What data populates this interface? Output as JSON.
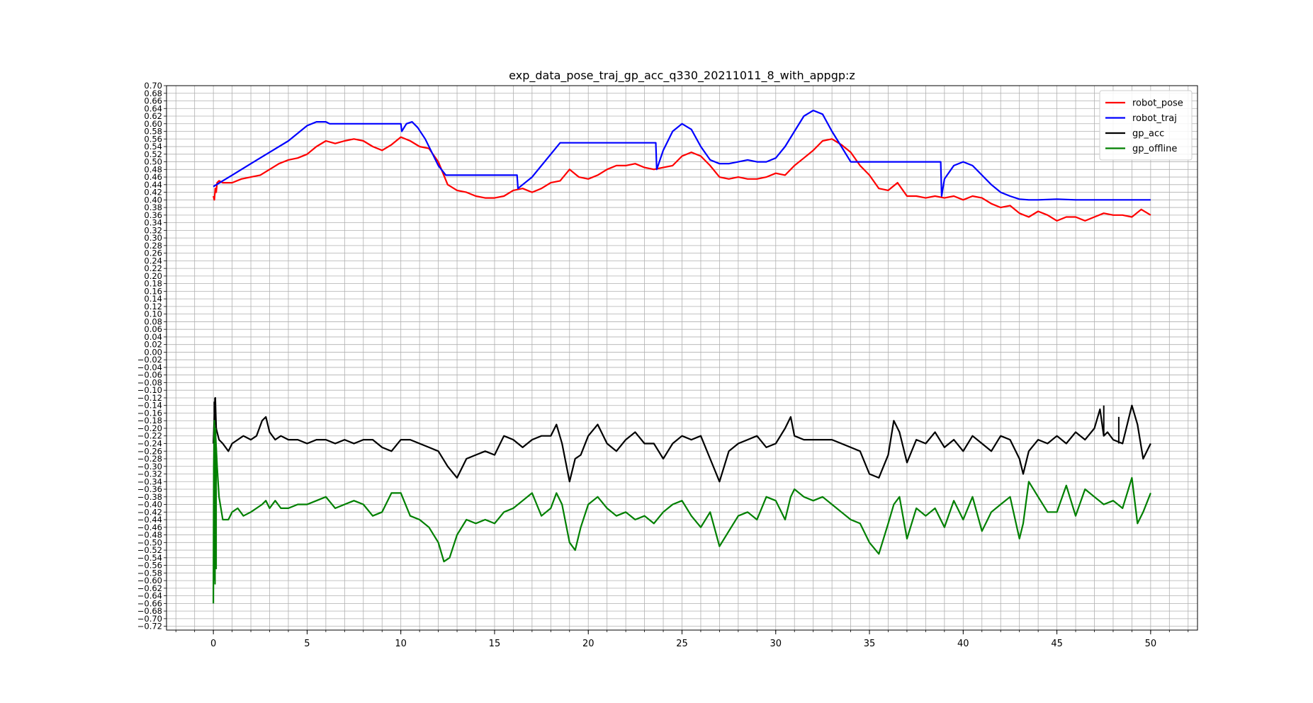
{
  "chart_data": {
    "type": "line",
    "title": "exp_data_pose_traj_gp_acc_q330_20211011_8_with_appgp:z",
    "xlabel": "",
    "ylabel": "",
    "xlim": [
      -2.5,
      52.5
    ],
    "ylim": [
      -0.73,
      0.7
    ],
    "x_ticks": [
      0,
      5,
      10,
      15,
      20,
      25,
      30,
      35,
      40,
      45,
      50
    ],
    "x_tick_labels": [
      "0",
      "5",
      "10",
      "15",
      "20",
      "25",
      "30",
      "35",
      "40",
      "45",
      "50"
    ],
    "x_minor_step": 1,
    "y_tick_step": 0.02,
    "y_tick_min": -0.72,
    "y_tick_max": 0.7,
    "grid": true,
    "legend_position": "top-right",
    "series": [
      {
        "name": "robot_pose",
        "color": "#ff0000",
        "x": [
          0.0,
          0.05,
          0.1,
          0.15,
          0.2,
          0.3,
          0.5,
          1.0,
          1.5,
          2.0,
          2.5,
          3.0,
          3.5,
          4.0,
          4.5,
          5.0,
          5.5,
          6.0,
          6.5,
          7.0,
          7.5,
          8.0,
          8.5,
          9.0,
          9.5,
          10.0,
          10.5,
          11.0,
          11.5,
          12.0,
          12.5,
          13.0,
          13.5,
          14.0,
          14.5,
          15.0,
          15.5,
          16.0,
          16.5,
          17.0,
          17.5,
          18.0,
          18.5,
          19.0,
          19.5,
          20.0,
          20.5,
          21.0,
          21.5,
          22.0,
          22.5,
          23.0,
          23.5,
          24.0,
          24.5,
          25.0,
          25.5,
          26.0,
          26.5,
          27.0,
          27.5,
          28.0,
          28.5,
          29.0,
          29.5,
          30.0,
          30.5,
          31.0,
          31.5,
          32.0,
          32.5,
          33.0,
          33.5,
          34.0,
          34.5,
          35.0,
          35.5,
          36.0,
          36.5,
          37.0,
          37.5,
          38.0,
          38.5,
          39.0,
          39.5,
          40.0,
          40.5,
          41.0,
          41.5,
          42.0,
          42.5,
          43.0,
          43.5,
          44.0,
          44.5,
          45.0,
          45.5,
          46.0,
          46.5,
          47.0,
          47.5,
          48.0,
          48.5,
          49.0,
          49.5,
          50.0
        ],
        "values": [
          0.41,
          0.4,
          0.43,
          0.42,
          0.445,
          0.45,
          0.445,
          0.445,
          0.455,
          0.46,
          0.465,
          0.48,
          0.495,
          0.505,
          0.51,
          0.52,
          0.54,
          0.555,
          0.548,
          0.555,
          0.56,
          0.555,
          0.54,
          0.53,
          0.545,
          0.565,
          0.555,
          0.54,
          0.535,
          0.5,
          0.44,
          0.425,
          0.42,
          0.41,
          0.405,
          0.405,
          0.41,
          0.425,
          0.43,
          0.42,
          0.43,
          0.445,
          0.45,
          0.48,
          0.46,
          0.455,
          0.465,
          0.48,
          0.49,
          0.49,
          0.495,
          0.485,
          0.48,
          0.485,
          0.49,
          0.515,
          0.525,
          0.515,
          0.49,
          0.46,
          0.455,
          0.46,
          0.455,
          0.455,
          0.46,
          0.47,
          0.465,
          0.49,
          0.51,
          0.53,
          0.555,
          0.56,
          0.545,
          0.525,
          0.49,
          0.465,
          0.43,
          0.425,
          0.445,
          0.41,
          0.41,
          0.405,
          0.41,
          0.405,
          0.41,
          0.4,
          0.41,
          0.405,
          0.39,
          0.38,
          0.385,
          0.365,
          0.355,
          0.37,
          0.36,
          0.345,
          0.355,
          0.355,
          0.345,
          0.355,
          0.365,
          0.36,
          0.36,
          0.355,
          0.375,
          0.36
        ]
      },
      {
        "name": "robot_traj",
        "color": "#0000ff",
        "x": [
          0.0,
          0.5,
          1.0,
          2.0,
          3.0,
          4.0,
          5.0,
          5.5,
          6.0,
          6.2,
          7.0,
          8.0,
          9.0,
          10.0,
          10.05,
          10.3,
          10.6,
          10.9,
          11.3,
          11.7,
          12.0,
          12.4,
          13.0,
          14.0,
          15.0,
          16.0,
          16.2,
          16.25,
          17.0,
          18.0,
          18.5,
          19.0,
          20.0,
          21.0,
          22.0,
          23.0,
          23.6,
          23.65,
          24.0,
          24.5,
          25.0,
          25.5,
          26.0,
          26.5,
          27.0,
          27.5,
          28.0,
          28.5,
          29.0,
          29.5,
          30.0,
          30.5,
          31.0,
          31.5,
          32.0,
          32.5,
          33.0,
          33.5,
          34.0,
          34.5,
          35.0,
          36.0,
          37.0,
          38.0,
          38.8,
          38.85,
          39.0,
          39.5,
          40.0,
          40.5,
          41.0,
          41.5,
          42.0,
          42.5,
          43.0,
          43.5,
          44.0,
          45.0,
          46.0,
          47.0,
          48.0,
          49.0,
          50.0
        ],
        "values": [
          0.435,
          0.45,
          0.465,
          0.495,
          0.525,
          0.555,
          0.595,
          0.605,
          0.605,
          0.6,
          0.6,
          0.6,
          0.6,
          0.6,
          0.58,
          0.6,
          0.605,
          0.59,
          0.56,
          0.52,
          0.49,
          0.465,
          0.465,
          0.465,
          0.465,
          0.465,
          0.465,
          0.43,
          0.46,
          0.52,
          0.55,
          0.55,
          0.55,
          0.55,
          0.55,
          0.55,
          0.55,
          0.48,
          0.53,
          0.58,
          0.6,
          0.585,
          0.54,
          0.505,
          0.495,
          0.495,
          0.5,
          0.505,
          0.5,
          0.5,
          0.51,
          0.54,
          0.58,
          0.62,
          0.635,
          0.625,
          0.58,
          0.54,
          0.5,
          0.5,
          0.5,
          0.5,
          0.5,
          0.5,
          0.5,
          0.41,
          0.455,
          0.49,
          0.5,
          0.49,
          0.465,
          0.44,
          0.42,
          0.41,
          0.402,
          0.4,
          0.4,
          0.402,
          0.4,
          0.4,
          0.4,
          0.4,
          0.4
        ]
      },
      {
        "name": "gp_acc",
        "color": "#000000",
        "x": [
          0.0,
          0.05,
          0.1,
          0.15,
          0.2,
          0.3,
          0.5,
          0.8,
          1.0,
          1.3,
          1.6,
          2.0,
          2.3,
          2.6,
          2.8,
          3.0,
          3.3,
          3.6,
          4.0,
          4.5,
          5.0,
          5.5,
          6.0,
          6.5,
          7.0,
          7.5,
          8.0,
          8.5,
          9.0,
          9.5,
          10.0,
          10.5,
          11.0,
          11.5,
          12.0,
          12.5,
          13.0,
          13.5,
          14.0,
          14.5,
          15.0,
          15.5,
          16.0,
          16.5,
          17.0,
          17.5,
          18.0,
          18.3,
          18.6,
          19.0,
          19.3,
          19.6,
          20.0,
          20.5,
          21.0,
          21.5,
          22.0,
          22.5,
          23.0,
          23.5,
          24.0,
          24.5,
          25.0,
          25.5,
          26.0,
          26.5,
          27.0,
          27.5,
          28.0,
          28.5,
          29.0,
          29.5,
          30.0,
          30.5,
          30.8,
          31.0,
          31.5,
          32.0,
          32.5,
          33.0,
          33.5,
          34.0,
          34.5,
          35.0,
          35.5,
          36.0,
          36.3,
          36.6,
          37.0,
          37.5,
          38.0,
          38.5,
          39.0,
          39.5,
          40.0,
          40.5,
          41.0,
          41.5,
          42.0,
          42.5,
          43.0,
          43.2,
          43.5,
          44.0,
          44.5,
          45.0,
          45.5,
          46.0,
          46.5,
          47.0,
          47.3,
          47.5,
          47.7,
          48.0,
          48.5,
          49.0,
          49.3,
          49.6,
          50.0
        ],
        "values": [
          -0.24,
          -0.17,
          -0.12,
          -0.2,
          -0.21,
          -0.23,
          -0.24,
          -0.26,
          -0.24,
          -0.23,
          -0.22,
          -0.23,
          -0.22,
          -0.18,
          -0.17,
          -0.21,
          -0.23,
          -0.22,
          -0.23,
          -0.23,
          -0.24,
          -0.23,
          -0.23,
          -0.24,
          -0.23,
          -0.24,
          -0.23,
          -0.23,
          -0.25,
          -0.26,
          -0.23,
          -0.23,
          -0.24,
          -0.25,
          -0.26,
          -0.3,
          -0.33,
          -0.28,
          -0.27,
          -0.26,
          -0.27,
          -0.22,
          -0.23,
          -0.25,
          -0.23,
          -0.22,
          -0.22,
          -0.19,
          -0.24,
          -0.34,
          -0.28,
          -0.27,
          -0.22,
          -0.19,
          -0.24,
          -0.26,
          -0.23,
          -0.21,
          -0.24,
          -0.24,
          -0.28,
          -0.24,
          -0.22,
          -0.23,
          -0.22,
          -0.28,
          -0.34,
          -0.26,
          -0.24,
          -0.23,
          -0.22,
          -0.25,
          -0.24,
          -0.2,
          -0.17,
          -0.22,
          -0.23,
          -0.23,
          -0.23,
          -0.23,
          -0.24,
          -0.25,
          -0.26,
          -0.32,
          -0.33,
          -0.27,
          -0.18,
          -0.21,
          -0.29,
          -0.23,
          -0.24,
          -0.21,
          -0.25,
          -0.23,
          -0.26,
          -0.22,
          -0.24,
          -0.26,
          -0.22,
          -0.23,
          -0.28,
          -0.32,
          -0.26,
          -0.23,
          -0.24,
          -0.22,
          -0.24,
          -0.21,
          -0.23,
          -0.2,
          -0.15,
          -0.22,
          -0.21,
          -0.23,
          -0.24,
          -0.14,
          -0.19,
          -0.28,
          -0.24
        ],
        "spike_x": [
          0.02,
          0.05,
          0.08,
          0.11,
          47.5,
          48.3
        ],
        "spike_values": [
          -0.21,
          -0.13,
          -0.19,
          -0.17,
          -0.14,
          -0.17
        ]
      },
      {
        "name": "gp_offline",
        "color": "#008000",
        "x": [
          0.0,
          0.02,
          0.05,
          0.08,
          0.1,
          0.15,
          0.2,
          0.3,
          0.5,
          0.8,
          1.0,
          1.3,
          1.6,
          2.0,
          2.3,
          2.6,
          2.8,
          3.0,
          3.3,
          3.6,
          4.0,
          4.5,
          5.0,
          5.5,
          6.0,
          6.5,
          7.0,
          7.5,
          8.0,
          8.5,
          9.0,
          9.5,
          10.0,
          10.5,
          11.0,
          11.5,
          12.0,
          12.3,
          12.6,
          13.0,
          13.5,
          14.0,
          14.5,
          15.0,
          15.5,
          16.0,
          16.5,
          17.0,
          17.5,
          18.0,
          18.3,
          18.6,
          19.0,
          19.3,
          19.6,
          20.0,
          20.5,
          21.0,
          21.5,
          22.0,
          22.5,
          23.0,
          23.5,
          24.0,
          24.5,
          25.0,
          25.5,
          26.0,
          26.5,
          27.0,
          27.5,
          28.0,
          28.5,
          29.0,
          29.5,
          30.0,
          30.5,
          30.8,
          31.0,
          31.5,
          32.0,
          32.5,
          33.0,
          33.5,
          34.0,
          34.5,
          35.0,
          35.5,
          36.0,
          36.3,
          36.6,
          37.0,
          37.5,
          38.0,
          38.5,
          39.0,
          39.5,
          40.0,
          40.5,
          41.0,
          41.5,
          42.0,
          42.5,
          43.0,
          43.2,
          43.5,
          44.0,
          44.5,
          45.0,
          45.5,
          46.0,
          46.5,
          47.0,
          47.5,
          48.0,
          48.5,
          49.0,
          49.3,
          49.6,
          50.0
        ],
        "values": [
          -0.66,
          -0.3,
          -0.18,
          -0.4,
          -0.2,
          -0.25,
          -0.3,
          -0.38,
          -0.44,
          -0.44,
          -0.42,
          -0.41,
          -0.43,
          -0.42,
          -0.41,
          -0.4,
          -0.39,
          -0.41,
          -0.39,
          -0.41,
          -0.41,
          -0.4,
          -0.4,
          -0.39,
          -0.38,
          -0.41,
          -0.4,
          -0.39,
          -0.4,
          -0.43,
          -0.42,
          -0.37,
          -0.37,
          -0.43,
          -0.44,
          -0.46,
          -0.5,
          -0.55,
          -0.54,
          -0.48,
          -0.44,
          -0.45,
          -0.44,
          -0.45,
          -0.42,
          -0.41,
          -0.39,
          -0.37,
          -0.43,
          -0.41,
          -0.37,
          -0.4,
          -0.5,
          -0.52,
          -0.46,
          -0.4,
          -0.38,
          -0.41,
          -0.43,
          -0.42,
          -0.44,
          -0.43,
          -0.45,
          -0.42,
          -0.4,
          -0.39,
          -0.43,
          -0.46,
          -0.42,
          -0.51,
          -0.47,
          -0.43,
          -0.42,
          -0.44,
          -0.38,
          -0.39,
          -0.44,
          -0.38,
          -0.36,
          -0.38,
          -0.39,
          -0.38,
          -0.4,
          -0.42,
          -0.44,
          -0.45,
          -0.5,
          -0.53,
          -0.45,
          -0.4,
          -0.38,
          -0.49,
          -0.41,
          -0.43,
          -0.41,
          -0.46,
          -0.39,
          -0.44,
          -0.38,
          -0.47,
          -0.42,
          -0.4,
          -0.38,
          -0.49,
          -0.45,
          -0.34,
          -0.38,
          -0.42,
          -0.42,
          -0.35,
          -0.43,
          -0.36,
          -0.38,
          -0.4,
          -0.39,
          -0.41,
          -0.33,
          -0.45,
          -0.42,
          -0.37
        ],
        "spike_x": [
          0.03,
          0.06,
          0.09,
          0.12,
          0.15
        ],
        "spike_values": [
          -0.6,
          -0.58,
          -0.61,
          -0.55,
          -0.57
        ]
      }
    ]
  }
}
